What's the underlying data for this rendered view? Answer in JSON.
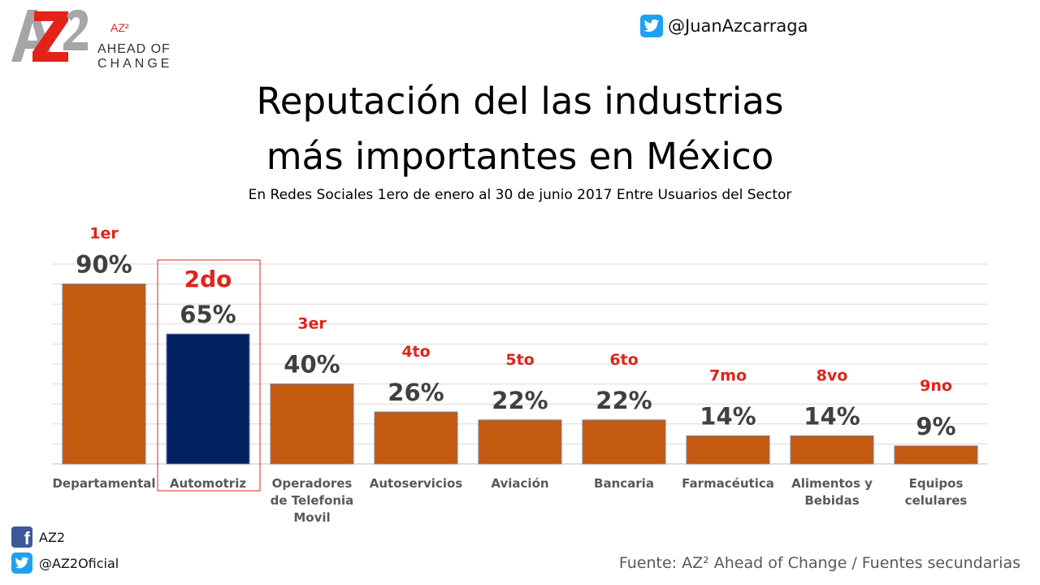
{
  "brand": {
    "logo_letters": "AZ2",
    "logo_superscript": "AZ²",
    "line1": "AHEAD OF",
    "line2": "CHANGE",
    "accent_red": "#e2231a",
    "gray": "#a6a6a6"
  },
  "header": {
    "twitter_handle": "@JuanAzcarraga",
    "twitter_icon": "twitter-icon"
  },
  "titles": {
    "line1": "Reputación del las industrias",
    "line2": "más importantes en México",
    "subtitle": "En Redes Sociales 1ero de enero al 30 de junio 2017 Entre Usuarios del Sector"
  },
  "chart_data": {
    "type": "bar",
    "categories": [
      "Departamental",
      "Automotriz",
      "Operadores de Telefonia Movil",
      "Autoservicios",
      "Aviación",
      "Bancaria",
      "Farmacéutica",
      "Alimentos y Bebidas",
      "Equipos celulares"
    ],
    "category_lines": [
      [
        "Departamental"
      ],
      [
        "Automotriz"
      ],
      [
        "Operadores",
        "de Telefonia",
        "Movil"
      ],
      [
        "Autoservicios"
      ],
      [
        "Aviación"
      ],
      [
        "Bancaria"
      ],
      [
        "Farmacéutica"
      ],
      [
        "Alimentos y",
        "Bebidas"
      ],
      [
        "Equipos",
        "celulares"
      ]
    ],
    "values": [
      90,
      65,
      40,
      26,
      22,
      22,
      14,
      14,
      9
    ],
    "value_labels": [
      "90%",
      "65%",
      "40%",
      "26%",
      "22%",
      "22%",
      "14%",
      "14%",
      "9%"
    ],
    "rank_labels": [
      "1er",
      "2do",
      "3er",
      "4to",
      "5to",
      "6to",
      "7mo",
      "8vo",
      "9no"
    ],
    "highlight_index": 1,
    "ylim": [
      0,
      100
    ],
    "grid": true,
    "colors": {
      "default": "#c55a11",
      "highlight": "#002060",
      "rank": "#e2231a",
      "value_label": "#404040",
      "category_label": "#595959"
    }
  },
  "footer": {
    "facebook_label": "AZ2",
    "twitter_label": "@AZ2Oficial",
    "source": "Fuente: AZ² Ahead of Change / Fuentes secundarias"
  }
}
